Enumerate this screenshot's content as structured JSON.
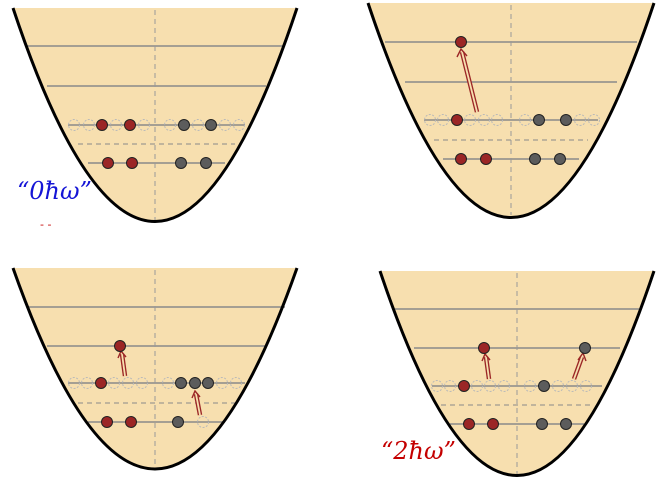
{
  "colors": {
    "well_fill": "#f7dfaf",
    "well_stroke": "#000000",
    "level_line": "#8a8a8a",
    "proton": "#9b2626",
    "neutron": "#5c5c5c",
    "empty_slot": "#b9b9b9",
    "arrow": "#9b2626",
    "label_0hw": "#1515d6",
    "label_2hw": "#c40000"
  },
  "labels": {
    "zero_hw": "“0ħω”",
    "two_hw": "“2ħω”",
    "small_mark": "- -"
  },
  "panels": [
    {
      "name": "panel-ground-state",
      "icon": "harmonic-well-icon"
    },
    {
      "name": "panel-proton-2hw-excitation",
      "icon": "harmonic-well-icon"
    },
    {
      "name": "panel-proton-neutron-1hw-excitations",
      "icon": "harmonic-well-icon"
    },
    {
      "name": "panel-proton-neutron-excitations-2hw",
      "icon": "harmonic-well-icon"
    }
  ]
}
